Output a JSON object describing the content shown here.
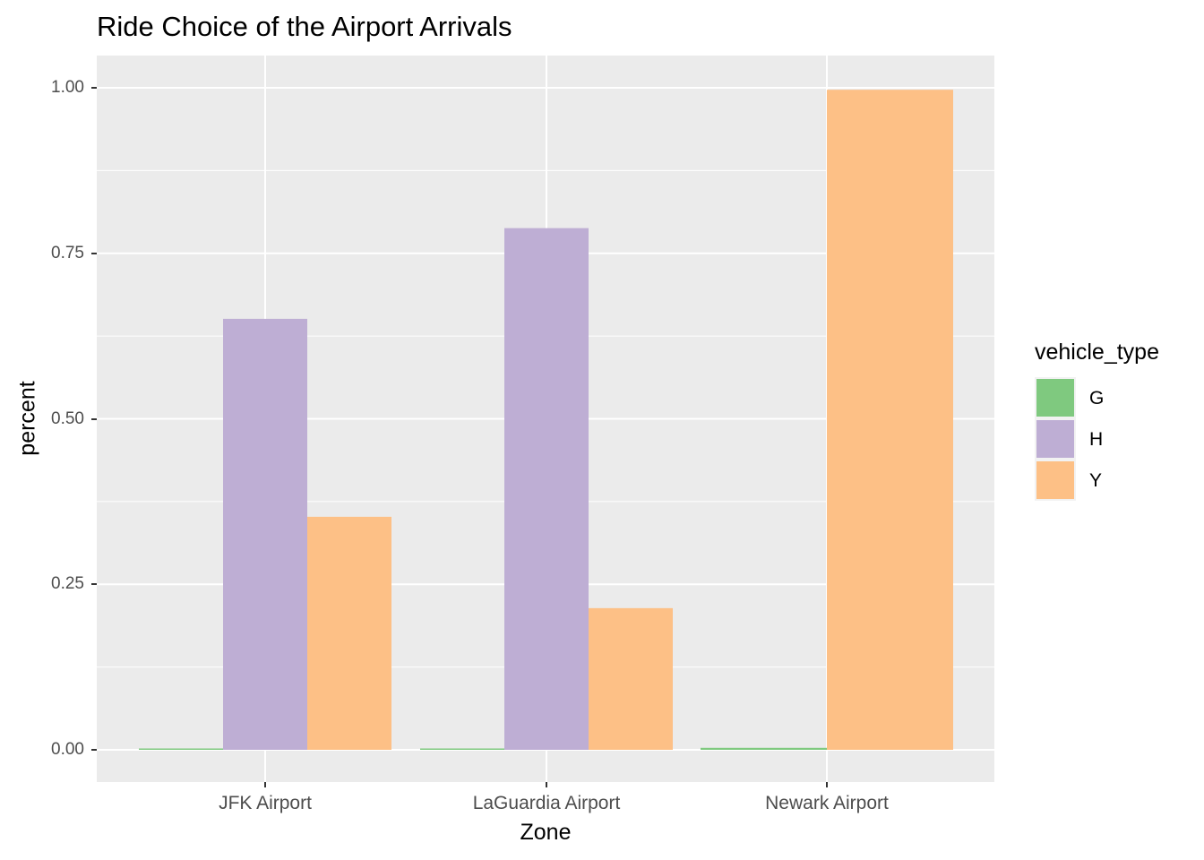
{
  "chart_data": {
    "type": "bar",
    "title": "Ride Choice of the Airport Arrivals",
    "xlabel": "Zone",
    "ylabel": "percent",
    "categories": [
      "JFK Airport",
      "LaGuardia Airport",
      "Newark Airport"
    ],
    "series": [
      {
        "name": "G",
        "color": "#7fc97f",
        "values": [
          0.001,
          0.001,
          0.003
        ]
      },
      {
        "name": "H",
        "color": "#beaed4",
        "values": [
          0.651,
          0.788,
          0
        ]
      },
      {
        "name": "Y",
        "color": "#fdc086",
        "values": [
          0.352,
          0.214,
          0.997
        ]
      }
    ],
    "yticks": [
      "0.00",
      "0.25",
      "0.50",
      "0.75",
      "1.00"
    ],
    "ylim": [
      -0.05,
      1.05
    ],
    "grid": true,
    "legend": {
      "title": "vehicle_type",
      "position": "right",
      "entries": [
        "G",
        "H",
        "Y"
      ]
    }
  }
}
